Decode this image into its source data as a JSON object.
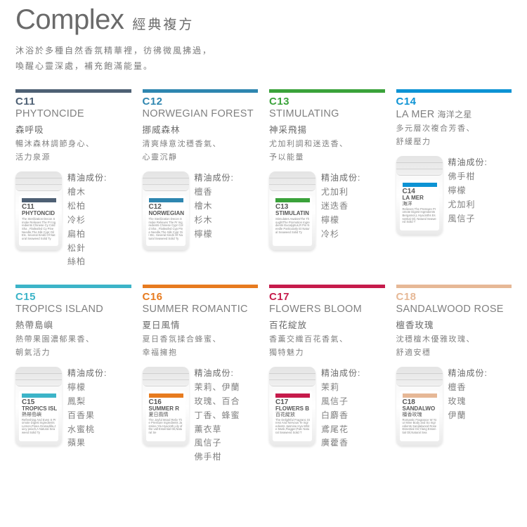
{
  "header": {
    "title_en": "Complex",
    "title_zh": "經典複方",
    "subtitle_line1": "沐浴於多種自然香氛精華裡，彷彿微風拂過，",
    "subtitle_line2": "喚醒心靈深處，補充飽滿能量。"
  },
  "ingr_label": "精油成份:",
  "text_color": "#6a6a6a",
  "background": "#ffffff",
  "cards": [
    {
      "code": "C11",
      "name_en": "PHYTONCIDE",
      "name_zh": "森呼吸",
      "name_zh_extra": "",
      "desc": "暢沐森林調節身心、\n活力泉源",
      "color": "#4e6074",
      "ingredients": "檜木\n松柏\n冷杉\n扁柏\n松針\n絲柏",
      "bottle_label_en": "PHYTONCID",
      "bottle_label_zh": "",
      "bottle_fine": "The Sterilization Decon Smoke Relieves The Pr\nIngredients Chinese Cy Cold Sha , Flatleafed Cy Pine Needle,The Silk Cypr Oil Etc. Several Kinds Of Natural Seaweed Solid Ty"
    },
    {
      "code": "C12",
      "name_en": "NORWEGIAN FOREST",
      "name_zh": "挪威森林",
      "name_zh_extra": "",
      "desc": "清爽綠意沈穩香氣、\n心靈沉靜",
      "color": "#2e86b0",
      "ingredients": "檀香\n檜木\n杉木\n檸檬",
      "bottle_label_en": "NORWEGIAN",
      "bottle_label_zh": "",
      "bottle_fine": "The Sterilization Decon Smoke Relieves The Pr\nIngredients Chinese Cypr Cold Sha , Flatleafed Cyp Pine Needle,The Silk Cypr Oil Etc. Several Kinds Of Natural Seaweed Solid Ty"
    },
    {
      "code": "C13",
      "name_en": "STIMULATING",
      "name_zh": "神采飛揚",
      "name_zh_extra": "",
      "desc": "尤加利調和迷迭香、\n予以能量",
      "color": "#3aa23a",
      "ingredients": "尤加利\n迷迭香\n檸檬\n冷杉",
      "bottle_label_en": "STIMULATIN",
      "bottle_label_zh": "",
      "bottle_fine": "Stimulates AwakesThe ThoughtThe Promotion\nIngredients Eucalyptus,R Pin Needle Particularly Et Natural Seaweed Solid Ty"
    },
    {
      "code": "C14",
      "name_en": "LA MER",
      "name_zh": "",
      "name_zh_extra": "海洋之星",
      "desc": "多元層次複合芳香、\n舒緩壓力",
      "color": "#0d93d4",
      "ingredients": "佛手柑\n檸檬\n尤加利\n風信子",
      "bottle_label_en": "LA MER",
      "bottle_label_zh": "海洋",
      "bottle_fine": "Relieves The Pressure Promote Digest\nIngredients Bergamot,L Hyacinths Essential Oil, Natural Seaweed Solid T"
    },
    {
      "code": "C15",
      "name_en": "TROPICS ISLAND",
      "name_zh": "熱帶島嶼",
      "name_zh_extra": "",
      "desc": "熱帶果園濃郁果香、\n朝氣活力",
      "color": "#3cb4c8",
      "ingredients": "檸檬\n鳳梨\n百香果\n水蜜桃\n蘋果",
      "bottle_label_en": "TROPICS ISL",
      "bottle_label_zh": "熱帶島嶼",
      "bottle_fine": "Refreshing And Even S Promote Digest\nIngredients Lemon,Pinea Granadilla,Juicy peach,A Natural Seaweed Solid Ty"
    },
    {
      "code": "C16",
      "name_en": "SUMMER ROMANTIC",
      "name_zh": "夏日風情",
      "name_zh_extra": "",
      "desc": "夏日香氛揉合蜂蜜、\n幸福擁抱",
      "color": "#e77b1f",
      "ingredients": "茉莉、伊蘭\n玫瑰、百合\n丁香、蜂蜜\n薰衣草\n風信子\n佛手柑",
      "bottle_label_en": "SUMMER R",
      "bottle_label_zh": "夏日風情",
      "bottle_fine": "The Joyful Mood Reliv The Pressure\nIngredients Jasmine,Yla Hyacinth,Lily of the vall Essential Oil,Natural Se"
    },
    {
      "code": "C17",
      "name_en": "FLOWERS BLOOM",
      "name_zh": "百花綻放",
      "name_zh_extra": "",
      "desc": "香薰交織百花香氣、\n獨特魅力",
      "color": "#c61b4b",
      "ingredients": "茉莉\n風信子\n白麝香\n鳶尾花\n廣藿香",
      "bottle_label_en": "FLOWERS B",
      "bottle_label_zh": "百花綻放",
      "bottle_fine": "The Delightful Fragranc Stress And Nervous Te\nIngredients Jasmine,Hya White Musk,Flagger,Patc Natural Seaweed Solid T"
    },
    {
      "code": "C18",
      "name_en": "SANDALWOOD ROSE",
      "name_zh": "檀香玫瑰",
      "name_zh_extra": "",
      "desc": "沈穩檀木優雅玫瑰、\n舒適安穩",
      "color": "#e6b896",
      "ingredients": "檀香\n玫瑰\n伊蘭",
      "bottle_label_en": "SANDALWO",
      "bottle_label_zh": "檀香玫瑰",
      "bottle_fine": "Romantic Fragrance W Your Mine Body and So\nIngredients Sandalwood Rose Essential Oil,Ylang Essential Oil,Natural Sea"
    }
  ]
}
